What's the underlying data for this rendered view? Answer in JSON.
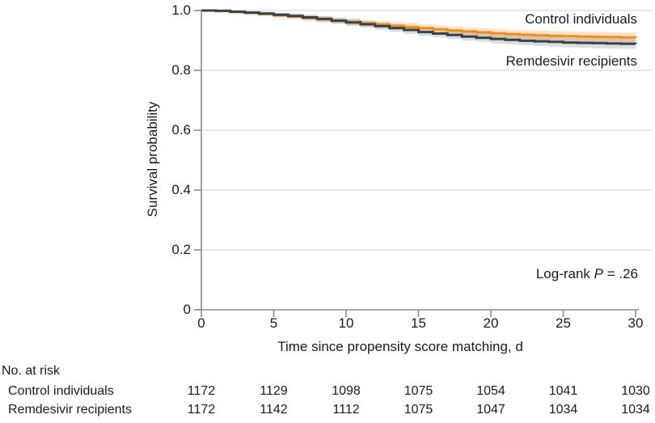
{
  "chart_data": {
    "type": "line",
    "subtype": "kaplan-meier-step",
    "xlabel": "Time since propensity score matching, d",
    "ylabel": "Survival probability",
    "xlim": [
      0,
      30
    ],
    "ylim": [
      0,
      1.0
    ],
    "x_ticks": [
      0,
      5,
      10,
      15,
      20,
      25,
      30
    ],
    "y_ticks": [
      0,
      0.2,
      0.4,
      0.6,
      0.8,
      1.0
    ],
    "y_tick_labels": [
      "0",
      "0.2",
      "0.4",
      "0.6",
      "0.8",
      "1.0"
    ],
    "grid": "horizontal-light",
    "days": [
      0,
      1,
      2,
      3,
      4,
      5,
      6,
      7,
      8,
      9,
      10,
      11,
      12,
      13,
      14,
      15,
      16,
      17,
      18,
      19,
      20,
      21,
      22,
      23,
      24,
      25,
      26,
      27,
      28,
      29,
      30
    ],
    "series": [
      {
        "name": "Control individuals",
        "color": "#F28C1C",
        "band_color": "rgba(242,140,28,0.24)",
        "values": [
          1.0,
          0.998,
          0.995,
          0.992,
          0.988,
          0.984,
          0.98,
          0.975,
          0.971,
          0.966,
          0.962,
          0.957,
          0.953,
          0.949,
          0.945,
          0.941,
          0.937,
          0.933,
          0.93,
          0.927,
          0.924,
          0.921,
          0.919,
          0.917,
          0.915,
          0.914,
          0.913,
          0.912,
          0.911,
          0.91,
          0.909
        ],
        "ci_halfwidth": [
          0.0,
          0.003,
          0.004,
          0.005,
          0.006,
          0.007,
          0.008,
          0.009,
          0.01,
          0.01,
          0.011,
          0.011,
          0.012,
          0.012,
          0.013,
          0.013,
          0.013,
          0.014,
          0.014,
          0.014,
          0.015,
          0.015,
          0.015,
          0.016,
          0.016,
          0.016,
          0.016,
          0.017,
          0.017,
          0.017,
          0.017
        ]
      },
      {
        "name": "Remdesivir recipients",
        "color": "#36424A",
        "band_color": "rgba(54,66,74,0.18)",
        "values": [
          1.0,
          0.999,
          0.996,
          0.993,
          0.99,
          0.986,
          0.982,
          0.977,
          0.972,
          0.966,
          0.96,
          0.954,
          0.948,
          0.941,
          0.935,
          0.928,
          0.923,
          0.918,
          0.913,
          0.909,
          0.905,
          0.902,
          0.899,
          0.897,
          0.895,
          0.893,
          0.892,
          0.891,
          0.89,
          0.889,
          0.888
        ],
        "ci_halfwidth": [
          0.0,
          0.003,
          0.004,
          0.005,
          0.006,
          0.007,
          0.008,
          0.009,
          0.01,
          0.01,
          0.011,
          0.011,
          0.012,
          0.012,
          0.013,
          0.013,
          0.013,
          0.014,
          0.014,
          0.014,
          0.015,
          0.015,
          0.015,
          0.016,
          0.016,
          0.016,
          0.016,
          0.017,
          0.017,
          0.017,
          0.017
        ]
      }
    ],
    "annotation": {
      "prefix": "Log-rank ",
      "p_symbol": "P",
      "value": " = .26"
    }
  },
  "risk_table": {
    "title": "No. at risk",
    "columns_days": [
      0,
      5,
      10,
      15,
      20,
      25,
      30
    ],
    "rows": [
      {
        "label": "Control individuals",
        "counts": [
          "1172",
          "1129",
          "1098",
          "1075",
          "1054",
          "1041",
          "1030"
        ]
      },
      {
        "label": "Remdesivir recipients",
        "counts": [
          "1172",
          "1142",
          "1112",
          "1075",
          "1047",
          "1034",
          "1034"
        ]
      }
    ]
  },
  "colors": {
    "axis": "#8A8A8A",
    "gridline": "#E8E8E8",
    "text": "#1A1A1A",
    "background": "#FFFFFF"
  }
}
